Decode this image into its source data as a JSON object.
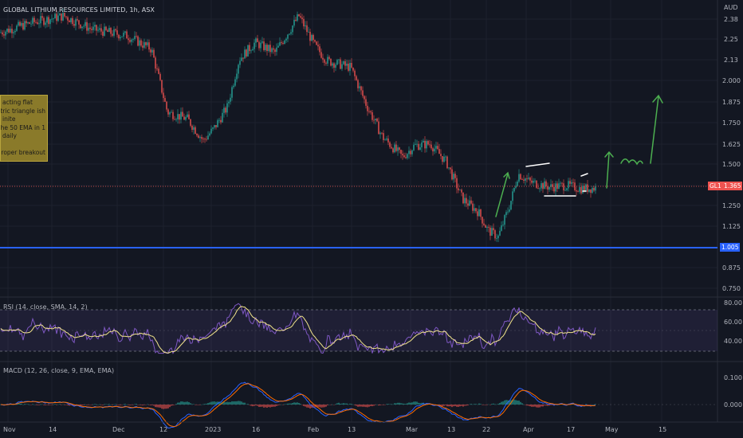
{
  "header": {
    "title": "GLOBAL LITHIUM RESOURCES LIMITED, 1h, ASX",
    "currency": "AUD"
  },
  "price_axis": {
    "ticks": [
      "2.38",
      "2.25",
      "2.13",
      "2.000",
      "1.875",
      "1.750",
      "1.625",
      "1.500",
      "1.375",
      "1.250",
      "1.125",
      "1.005",
      "0.875",
      "0.750"
    ],
    "symbol_tag": "GL1",
    "last_price": "1.365",
    "support_level": "1.005"
  },
  "time_axis": {
    "ticks": [
      "Nov",
      "14",
      "Dec",
      "12",
      "2023",
      "16",
      "Feb",
      "13",
      "Mar",
      "13",
      "22",
      "Apr",
      "17",
      "May",
      "15"
    ]
  },
  "note": {
    "lines": [
      "acting flat",
      "etric triangle ish -",
      "inite",
      "the 50 EMA in 1",
      "daily",
      "",
      "r proper breakout"
    ]
  },
  "rsi": {
    "label": "RSI (14, close, SMA, 14, 2)",
    "ticks": [
      "80.00",
      "60.00",
      "40.00"
    ]
  },
  "macd": {
    "label": "MACD (12, 26, close, 9, EMA, EMA)",
    "ticks": [
      "0.100",
      "0.000"
    ]
  },
  "colors": {
    "background": "#131722",
    "up": "#26a69a",
    "down": "#ef5350",
    "support_line": "#2962ff",
    "price_line": "#ef5350",
    "arrow": "#4caf50",
    "rsi_line": "#7e57c2",
    "rsi_ma": "#f3e58c",
    "macd_line": "#2962ff",
    "signal_line": "#ff6d00",
    "note_bg": "#8a7a2a"
  },
  "chart_data": {
    "type": "candlestick",
    "anchors": [
      [
        0,
        2.3
      ],
      [
        40,
        2.36
      ],
      [
        80,
        2.4
      ],
      [
        115,
        2.32
      ],
      [
        160,
        2.28
      ],
      [
        190,
        2.2
      ],
      [
        210,
        1.82
      ],
      [
        235,
        1.78
      ],
      [
        255,
        1.65
      ],
      [
        268,
        1.72
      ],
      [
        285,
        1.85
      ],
      [
        300,
        2.14
      ],
      [
        320,
        2.24
      ],
      [
        345,
        2.18
      ],
      [
        375,
        2.4
      ],
      [
        395,
        2.22
      ],
      [
        410,
        2.13
      ],
      [
        440,
        2.09
      ],
      [
        460,
        1.86
      ],
      [
        480,
        1.67
      ],
      [
        505,
        1.55
      ],
      [
        520,
        1.62
      ],
      [
        540,
        1.63
      ],
      [
        560,
        1.52
      ],
      [
        580,
        1.3
      ],
      [
        600,
        1.22
      ],
      [
        612,
        1.11
      ],
      [
        625,
        1.07
      ],
      [
        640,
        1.27
      ],
      [
        650,
        1.45
      ],
      [
        665,
        1.4
      ],
      [
        690,
        1.37
      ],
      [
        710,
        1.38
      ],
      [
        730,
        1.36
      ],
      [
        748,
        1.365
      ]
    ],
    "ylim": [
      0.68,
      2.45
    ],
    "last": 1.365,
    "support": 1.005
  }
}
